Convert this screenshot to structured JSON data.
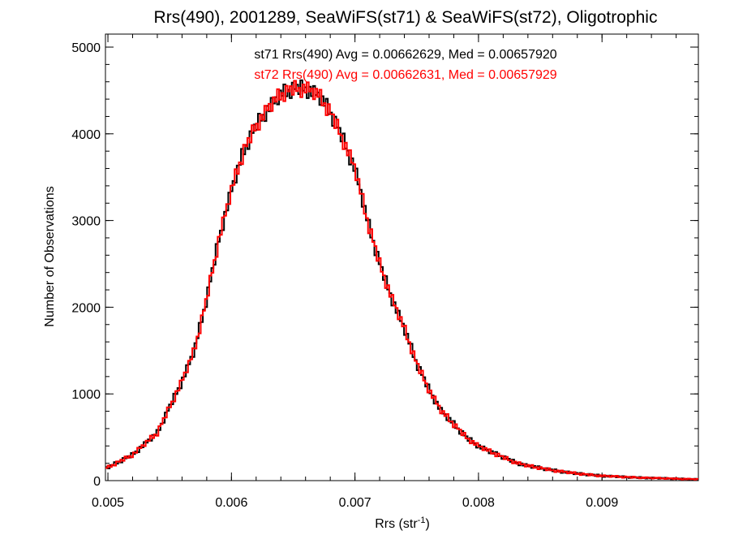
{
  "chart_data": {
    "type": "histogram",
    "title": "Rrs(490), 2001289, SeaWiFS(st71) & SeaWiFS(st72), Oligotrophic",
    "xlabel": "Rrs (str",
    "xlabel_sup": "-1",
    "xlabel_end": ")",
    "ylabel": "Number of Observations",
    "xlim": [
      0.00498,
      0.00978
    ],
    "ylim": [
      0,
      5150
    ],
    "xticks": [
      0.005,
      0.006,
      0.007,
      0.008,
      0.009
    ],
    "xtick_labels": [
      "0.005",
      "0.006",
      "0.007",
      "0.008",
      "0.009"
    ],
    "yticks": [
      0,
      1000,
      2000,
      3000,
      4000,
      5000
    ],
    "ytick_labels": [
      "0",
      "1000",
      "2000",
      "3000",
      "4000",
      "5000"
    ],
    "grid": false,
    "legend_position": "top-center",
    "annotations": [
      {
        "text": "st71 Rrs(490) Avg = 0.00662629, Med = 0.00657920",
        "color": "#000000"
      },
      {
        "text": "st72 Rrs(490) Avg = 0.00662631, Med = 0.00657929",
        "color": "#ff0000"
      }
    ],
    "series": [
      {
        "color": "#000000",
        "x": [
          0.005,
          0.0052,
          0.0054,
          0.0055,
          0.0056,
          0.0057,
          0.0058,
          0.0059,
          0.006,
          0.0061,
          0.0062,
          0.0063,
          0.0064,
          0.0065,
          0.0066,
          0.0067,
          0.0068,
          0.0069,
          0.007,
          0.0071,
          0.0072,
          0.0073,
          0.0074,
          0.0075,
          0.0076,
          0.0077,
          0.0078,
          0.0079,
          0.008,
          0.0081,
          0.0082,
          0.0083,
          0.0084,
          0.0086,
          0.0088,
          0.009,
          0.0092,
          0.0094,
          0.0096,
          0.0098
        ],
        "y": [
          150,
          300,
          550,
          850,
          1150,
          1500,
          2100,
          2800,
          3350,
          3800,
          4100,
          4300,
          4450,
          4520,
          4530,
          4450,
          4250,
          3950,
          3600,
          3000,
          2500,
          2100,
          1750,
          1350,
          1050,
          800,
          650,
          500,
          400,
          330,
          270,
          210,
          170,
          120,
          80,
          55,
          40,
          30,
          22,
          15
        ]
      },
      {
        "color": "#ff0000",
        "x": [
          0.005,
          0.0052,
          0.0054,
          0.0055,
          0.0056,
          0.0057,
          0.0058,
          0.0059,
          0.006,
          0.0061,
          0.0062,
          0.0063,
          0.0064,
          0.0065,
          0.0066,
          0.0067,
          0.0068,
          0.0069,
          0.007,
          0.0071,
          0.0072,
          0.0073,
          0.0074,
          0.0075,
          0.0076,
          0.0077,
          0.0078,
          0.0079,
          0.008,
          0.0081,
          0.0082,
          0.0083,
          0.0084,
          0.0086,
          0.0088,
          0.009,
          0.0092,
          0.0094,
          0.0096,
          0.0098
        ],
        "y": [
          150,
          300,
          550,
          850,
          1150,
          1500,
          2100,
          2800,
          3350,
          3800,
          4100,
          4300,
          4450,
          4520,
          4530,
          4450,
          4250,
          3950,
          3600,
          3000,
          2500,
          2100,
          1750,
          1350,
          1050,
          800,
          650,
          500,
          400,
          330,
          270,
          210,
          170,
          120,
          80,
          55,
          40,
          30,
          22,
          15
        ]
      }
    ]
  }
}
